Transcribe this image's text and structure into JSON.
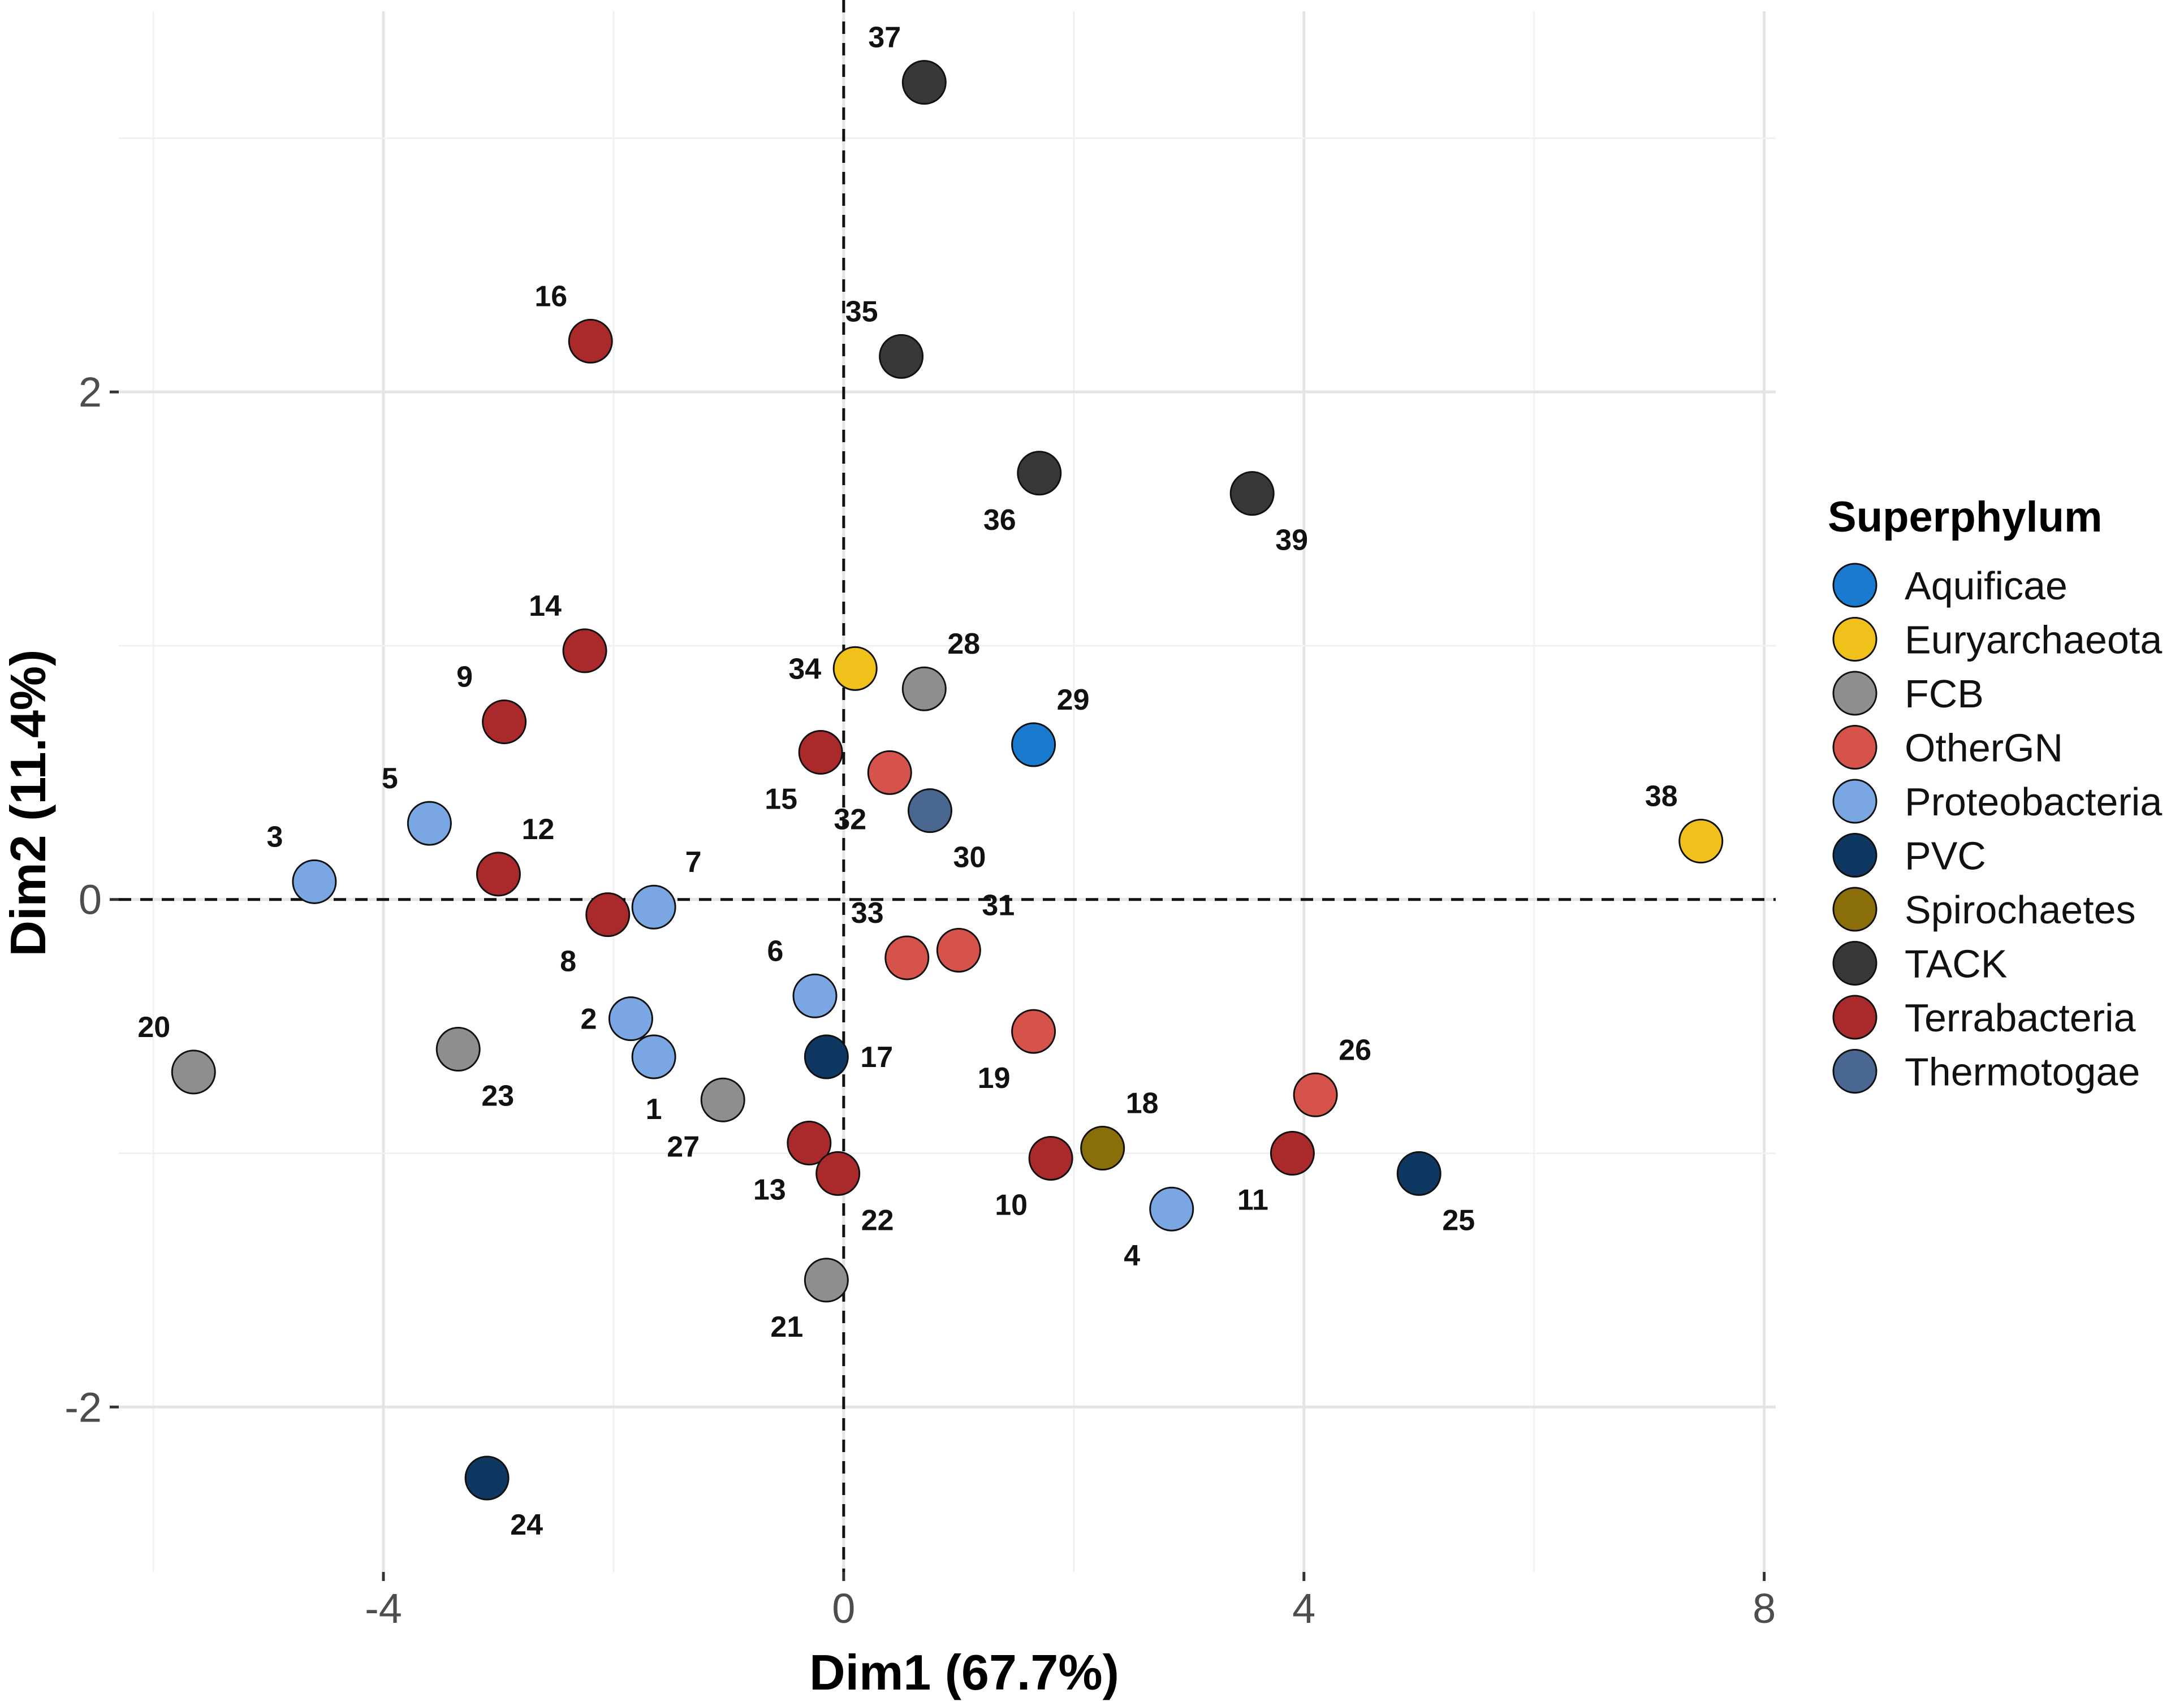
{
  "chart_data": {
    "type": "scatter",
    "xlabel": "Dim1 (67.7%)",
    "ylabel": "Dim2 (11.4%)",
    "xlim": [
      -6.3,
      8.1
    ],
    "ylim": [
      -2.65,
      3.5
    ],
    "x_ticks": [
      -4,
      0,
      4,
      8
    ],
    "x_tick_labels": [
      "-4",
      "0",
      "4",
      "8"
    ],
    "y_ticks": [
      -2,
      0,
      2
    ],
    "y_tick_labels": [
      "-2",
      "0",
      "2"
    ],
    "grid": true,
    "reference_lines": [
      "x = 0 (dashed)",
      "y = 0 (dashed)"
    ],
    "legend": {
      "title": "Superphylum",
      "position": "right",
      "entries": [
        {
          "name": "Aquificae",
          "color": "#1a7ad0"
        },
        {
          "name": "Euryarchaeota",
          "color": "#f0c11b"
        },
        {
          "name": "FCB",
          "color": "#8e8e8e"
        },
        {
          "name": "OtherGN",
          "color": "#d6534c"
        },
        {
          "name": "Proteobacteria",
          "color": "#7aa7e3"
        },
        {
          "name": "PVC",
          "color": "#0e3762"
        },
        {
          "name": "Spirochaetes",
          "color": "#8a6e0a"
        },
        {
          "name": "TACK",
          "color": "#383838"
        },
        {
          "name": "Terrabacteria",
          "color": "#aa2a2c"
        },
        {
          "name": "Thermotogae",
          "color": "#4a6791"
        }
      ]
    },
    "points": [
      {
        "label": "1",
        "x": -1.65,
        "y": -0.62,
        "group": "Proteobacteria",
        "lp": "below"
      },
      {
        "label": "2",
        "x": -1.85,
        "y": -0.47,
        "group": "Proteobacteria",
        "lp": "left"
      },
      {
        "label": "3",
        "x": -4.6,
        "y": 0.07,
        "group": "Proteobacteria",
        "lp": "upleft"
      },
      {
        "label": "4",
        "x": 2.85,
        "y": -1.22,
        "group": "Proteobacteria",
        "lp": "downleft"
      },
      {
        "label": "5",
        "x": -3.6,
        "y": 0.3,
        "group": "Proteobacteria",
        "lp": "upleft"
      },
      {
        "label": "6",
        "x": -0.25,
        "y": -0.38,
        "group": "Proteobacteria",
        "lp": "upleft"
      },
      {
        "label": "7",
        "x": -1.65,
        "y": -0.03,
        "group": "Proteobacteria",
        "lp": "upright"
      },
      {
        "label": "8",
        "x": -2.05,
        "y": -0.06,
        "group": "Terrabacteria",
        "lp": "downleft"
      },
      {
        "label": "9",
        "x": -2.95,
        "y": 0.7,
        "group": "Terrabacteria",
        "lp": "upleft"
      },
      {
        "label": "10",
        "x": 1.8,
        "y": -1.02,
        "group": "Terrabacteria",
        "lp": "downleft"
      },
      {
        "label": "11",
        "x": 3.9,
        "y": -1.0,
        "group": "Terrabacteria",
        "lp": "downleft"
      },
      {
        "label": "12",
        "x": -3.0,
        "y": 0.1,
        "group": "Terrabacteria",
        "lp": "upright"
      },
      {
        "label": "13",
        "x": -0.3,
        "y": -0.96,
        "group": "Terrabacteria",
        "lp": "downleft"
      },
      {
        "label": "14",
        "x": -2.25,
        "y": 0.98,
        "group": "Terrabacteria",
        "lp": "upleft"
      },
      {
        "label": "15",
        "x": -0.2,
        "y": 0.58,
        "group": "Terrabacteria",
        "lp": "downleft"
      },
      {
        "label": "16",
        "x": -2.2,
        "y": 2.2,
        "group": "Terrabacteria",
        "lp": "upleft"
      },
      {
        "label": "17",
        "x": -0.15,
        "y": -0.62,
        "group": "PVC",
        "lp": "right"
      },
      {
        "label": "18",
        "x": 2.25,
        "y": -0.98,
        "group": "Spirochaetes",
        "lp": "upright"
      },
      {
        "label": "19",
        "x": 1.65,
        "y": -0.52,
        "group": "OtherGN",
        "lp": "downleft"
      },
      {
        "label": "20",
        "x": -5.65,
        "y": -0.68,
        "group": "FCB",
        "lp": "upleft"
      },
      {
        "label": "21",
        "x": -0.15,
        "y": -1.5,
        "group": "FCB",
        "lp": "downleft"
      },
      {
        "label": "22",
        "x": -0.05,
        "y": -1.08,
        "group": "Terrabacteria",
        "lp": "downright"
      },
      {
        "label": "23",
        "x": -3.35,
        "y": -0.59,
        "group": "FCB",
        "lp": "downright"
      },
      {
        "label": "24",
        "x": -3.1,
        "y": -2.28,
        "group": "PVC",
        "lp": "downright"
      },
      {
        "label": "25",
        "x": 5.0,
        "y": -1.08,
        "group": "PVC",
        "lp": "downright"
      },
      {
        "label": "26",
        "x": 4.1,
        "y": -0.77,
        "group": "OtherGN",
        "lp": "upright"
      },
      {
        "label": "27",
        "x": -1.05,
        "y": -0.79,
        "group": "FCB",
        "lp": "downleft"
      },
      {
        "label": "28",
        "x": 0.7,
        "y": 0.83,
        "group": "FCB",
        "lp": "upright"
      },
      {
        "label": "29",
        "x": 1.65,
        "y": 0.61,
        "group": "Aquificae",
        "lp": "upright"
      },
      {
        "label": "30",
        "x": 0.75,
        "y": 0.35,
        "group": "Thermotogae",
        "lp": "downright"
      },
      {
        "label": "31",
        "x": 1.0,
        "y": -0.2,
        "group": "OtherGN",
        "lp": "upright"
      },
      {
        "label": "32",
        "x": 0.4,
        "y": 0.5,
        "group": "OtherGN",
        "lp": "downleft"
      },
      {
        "label": "33",
        "x": 0.55,
        "y": -0.23,
        "group": "OtherGN",
        "lp": "upleft"
      },
      {
        "label": "34",
        "x": 0.1,
        "y": 0.91,
        "group": "Euryarchaeota",
        "lp": "left"
      },
      {
        "label": "35",
        "x": 0.5,
        "y": 2.14,
        "group": "TACK",
        "lp": "upleft"
      },
      {
        "label": "36",
        "x": 1.7,
        "y": 1.68,
        "group": "TACK",
        "lp": "downleft"
      },
      {
        "label": "37",
        "x": 0.7,
        "y": 3.22,
        "group": "TACK",
        "lp": "upleft"
      },
      {
        "label": "38",
        "x": 7.45,
        "y": 0.23,
        "group": "Euryarchaeota",
        "lp": "upleft"
      },
      {
        "label": "39",
        "x": 3.55,
        "y": 1.6,
        "group": "TACK",
        "lp": "downright"
      }
    ]
  }
}
